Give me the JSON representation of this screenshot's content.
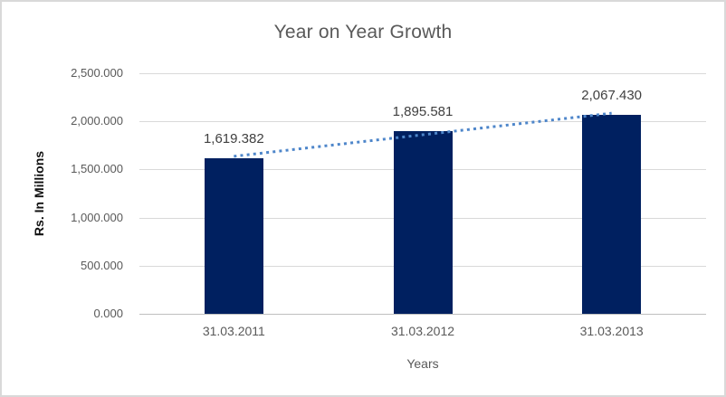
{
  "chart_data": {
    "type": "bar",
    "title": "Year on Year Growth",
    "xlabel": "Years",
    "ylabel": "Rs. In Millions",
    "categories": [
      "31.03.2011",
      "31.03.2012",
      "31.03.2013"
    ],
    "values": [
      1619.382,
      1895.581,
      2067.43
    ],
    "data_labels": [
      "1,619.382",
      "1,895.581",
      "2,067.430"
    ],
    "ylim": [
      0,
      2500
    ],
    "y_tick_step": 500,
    "y_tick_labels": [
      "0.000",
      "500.000",
      "1,000.000",
      "1,500.000",
      "2,000.000",
      "2,500.000"
    ],
    "grid": true,
    "legend": "none",
    "trendline": {
      "type": "linear",
      "style": "dotted",
      "fit_endpoints": [
        1636.774,
        2084.822
      ]
    },
    "colors": {
      "bar": "#002060",
      "trendline": "#4e86ca",
      "gridline": "#d9d9d9",
      "axis_line": "#bfbfbf",
      "title_text": "#595959",
      "tick_text": "#595959",
      "data_label_text": "#404040",
      "y_axis_title_text": "#111111",
      "border": "#d9d9d9",
      "background": "#ffffff"
    }
  }
}
